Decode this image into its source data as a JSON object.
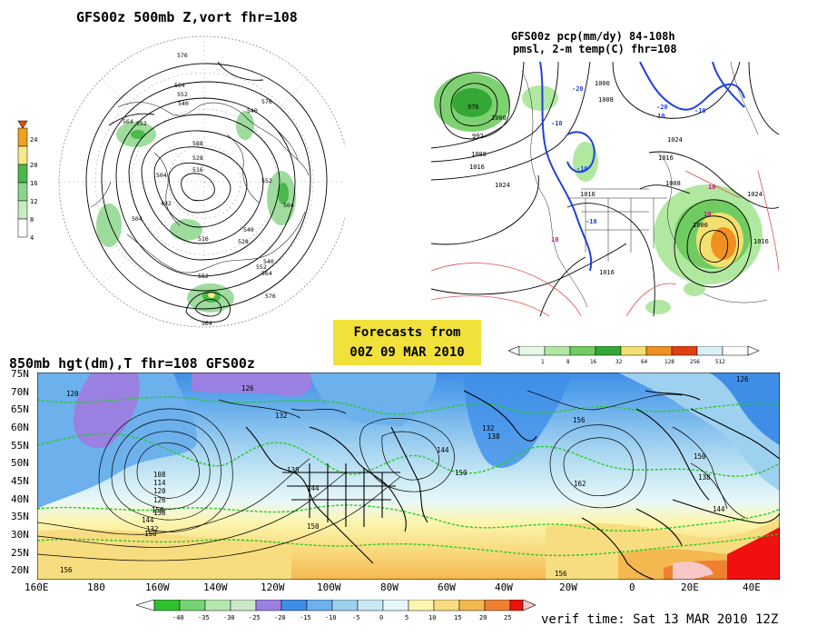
{
  "panels": {
    "p500": {
      "title": "GFS00z  500mb Z,vort   fhr=108",
      "colorbar": {
        "labels": [
          "4",
          "8",
          "12",
          "16",
          "20",
          "24"
        ],
        "colors": [
          "#ffffff",
          "#c8ecc0",
          "#8cd68c",
          "#4ab84a",
          "#f5e98a",
          "#f0a020",
          "#e05010"
        ]
      },
      "contour_labels": [
        "576",
        "564",
        "552",
        "540",
        "528",
        "516",
        "504",
        "492",
        "588",
        "564",
        "552",
        "540",
        "576",
        "564",
        "552",
        "540",
        "528",
        "516",
        "504",
        "540",
        "552",
        "564",
        "576",
        "564",
        "552"
      ]
    },
    "pcp": {
      "title_line1": "GFS00z pcp(mm/dy) 84-108h",
      "title_line2": "pmsl, 2-m temp(C)  fhr=108",
      "contour_labels": [
        "976",
        "992",
        "1000",
        "1008",
        "1016",
        "1024",
        "1000",
        "1008",
        "1016",
        "1024",
        "1016",
        "1024",
        "1016",
        "1008",
        "1000",
        "1016"
      ],
      "temp_labels": [
        "-20",
        "-10",
        "-10",
        "-20",
        "-10",
        "-10",
        "10",
        "10",
        "10",
        "-10"
      ],
      "colorbar": {
        "labels": [
          "1",
          "8",
          "16",
          "32",
          "64",
          "128",
          "256",
          "512"
        ],
        "colors": [
          "#e8f8e8",
          "#b0e8a0",
          "#70cc60",
          "#34a834",
          "#f4e070",
          "#f09020",
          "#e04010",
          "#d8f0f8",
          "#ffffff"
        ]
      }
    },
    "forecast_box": {
      "line1": "Forecasts from",
      "line2": "00Z 09 MAR 2010"
    },
    "p850": {
      "title": "850mb hgt(dm),T  fhr=108 GFS00z",
      "lat_labels": [
        "75N",
        "70N",
        "65N",
        "60N",
        "55N",
        "50N",
        "45N",
        "40N",
        "35N",
        "30N",
        "25N",
        "20N"
      ],
      "lon_labels": [
        "160E",
        "180",
        "160W",
        "140W",
        "120W",
        "100W",
        "80W",
        "60W",
        "40W",
        "20W",
        "0",
        "20E",
        "40E"
      ],
      "contour_labels": [
        "120",
        "126",
        "132",
        "138",
        "144",
        "150",
        "156",
        "108",
        "114",
        "120",
        "126",
        "132",
        "138",
        "144",
        "150",
        "156",
        "162",
        "156",
        "150",
        "144",
        "138",
        "132",
        "126",
        "138",
        "144",
        "150",
        "156"
      ],
      "colorbar": {
        "labels": [
          "-40",
          "-35",
          "-30",
          "-25",
          "-20",
          "-15",
          "-10",
          "-5",
          "0",
          "5",
          "10",
          "15",
          "20",
          "25"
        ],
        "colors": [
          "#30c030",
          "#74d474",
          "#b6e8b0",
          "#cce8c8",
          "#9a80e0",
          "#3e8ee8",
          "#6cb0ec",
          "#9ed0f0",
          "#c8e8f4",
          "#e8f8fa",
          "#fcf6b0",
          "#f8dc80",
          "#f4b850",
          "#f08030",
          "#f01010",
          "#f8c8c8"
        ]
      }
    },
    "verif": "verif time: Sat 13 MAR 2010 12Z"
  }
}
